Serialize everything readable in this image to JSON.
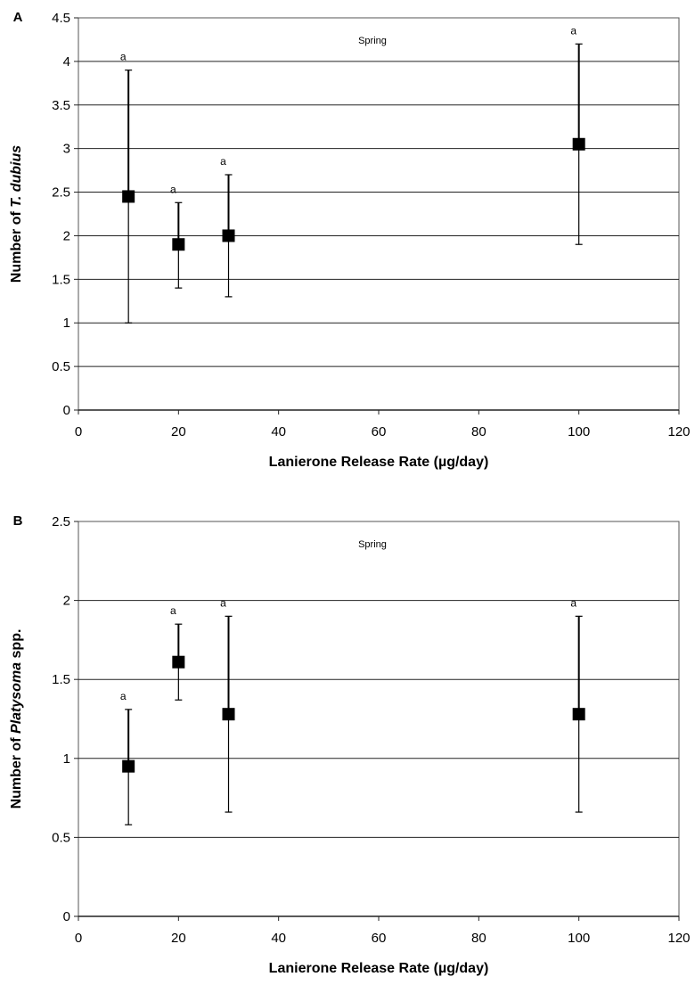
{
  "chart_data": [
    {
      "type": "scatter",
      "panel_label": "A",
      "annotation": "Spring",
      "xlabel": "Lanierone Release Rate (µg/day)",
      "ylabel_parts": [
        {
          "text": "Number of ",
          "italic": false
        },
        {
          "text": "T. dubius",
          "italic": true
        }
      ],
      "xlim": [
        0,
        120
      ],
      "ylim": [
        0,
        4.5
      ],
      "xticks": [
        "0",
        "20",
        "40",
        "60",
        "80",
        "100",
        "120"
      ],
      "yticks": [
        "0",
        "0.5",
        "1",
        "1.5",
        "2",
        "2.5",
        "3",
        "3.5",
        "4",
        "4.5"
      ],
      "grid": "horizontal",
      "points": [
        {
          "x": 10,
          "y": 2.45,
          "err_low": 1.0,
          "err_high": 3.9,
          "label": "a"
        },
        {
          "x": 20,
          "y": 1.9,
          "err_low": 1.4,
          "err_high": 2.38,
          "label": "a"
        },
        {
          "x": 30,
          "y": 2.0,
          "err_low": 1.3,
          "err_high": 2.7,
          "label": "a"
        },
        {
          "x": 100,
          "y": 3.05,
          "err_low": 1.9,
          "err_high": 4.2,
          "label": "a"
        }
      ]
    },
    {
      "type": "scatter",
      "panel_label": "B",
      "annotation": "Spring",
      "xlabel": "Lanierone Release Rate (µg/day)",
      "ylabel_parts": [
        {
          "text": "Number of ",
          "italic": false
        },
        {
          "text": "Platysoma",
          "italic": true
        },
        {
          "text": " spp.",
          "italic": false
        }
      ],
      "xlim": [
        0,
        120
      ],
      "ylim": [
        0,
        2.5
      ],
      "xticks": [
        "0",
        "20",
        "40",
        "60",
        "80",
        "100",
        "120"
      ],
      "yticks": [
        "0",
        "0.5",
        "1",
        "1.5",
        "2",
        "2.5"
      ],
      "grid": "horizontal",
      "points": [
        {
          "x": 10,
          "y": 0.95,
          "err_low": 0.58,
          "err_high": 1.31,
          "label": "a"
        },
        {
          "x": 20,
          "y": 1.61,
          "err_low": 1.37,
          "err_high": 1.85,
          "label": "a"
        },
        {
          "x": 30,
          "y": 1.28,
          "err_low": 0.66,
          "err_high": 1.9,
          "label": "a"
        },
        {
          "x": 100,
          "y": 1.28,
          "err_low": 0.66,
          "err_high": 1.9,
          "label": "a"
        }
      ]
    }
  ]
}
